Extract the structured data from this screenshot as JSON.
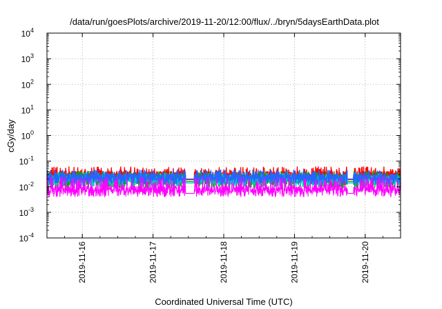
{
  "chart_data": {
    "type": "line",
    "title": "/data/run/goesPlots/archive/2019-11-20/12:00/flux/../bryn/5daysEarthData.plot",
    "xlabel": "Coordinated Universal Time (UTC)",
    "ylabel": "cGy/day",
    "y_scale": "log",
    "ylim": [
      0.0001,
      10000
    ],
    "xlim": [
      "2019-11-15T12:00",
      "2019-11-20T12:00"
    ],
    "x_ticks": [
      "2019-11-16",
      "2019-11-17",
      "2019-11-18",
      "2019-11-19",
      "2019-11-20"
    ],
    "y_ticks": [
      {
        "base": "10",
        "exp": "-4",
        "value": 0.0001
      },
      {
        "base": "10",
        "exp": "-3",
        "value": 0.001
      },
      {
        "base": "10",
        "exp": "-2",
        "value": 0.01
      },
      {
        "base": "10",
        "exp": "-1",
        "value": 0.1
      },
      {
        "base": "10",
        "exp": "0",
        "value": 1
      },
      {
        "base": "10",
        "exp": "1",
        "value": 10
      },
      {
        "base": "10",
        "exp": "2",
        "value": 100
      },
      {
        "base": "10",
        "exp": "3",
        "value": 1000
      },
      {
        "base": "10",
        "exp": "4",
        "value": 10000
      }
    ],
    "grid": true,
    "series": [
      {
        "color": "#ff0000",
        "base": 0.03,
        "low": 0.012,
        "high": 0.06,
        "gap_level": 0.019
      },
      {
        "color": "#00aa00",
        "base": 0.022,
        "low": 0.009,
        "high": 0.04,
        "gap_level": 0.016
      },
      {
        "color": "#00c8c8",
        "base": 0.02,
        "low": 0.01,
        "high": 0.035,
        "gap_level": 0.014
      },
      {
        "color": "#2266ff",
        "base": 0.024,
        "low": 0.013,
        "high": 0.045,
        "gap_level": 0.02
      },
      {
        "color": "#ff00ff",
        "base": 0.008,
        "low": 0.004,
        "high": 0.025,
        "gap_level": 0.0055
      }
    ],
    "data_gaps": [
      [
        "2019-11-17T11:00",
        "2019-11-17T14:00"
      ],
      [
        "2019-11-19T18:00",
        "2019-11-19T20:00"
      ]
    ]
  }
}
